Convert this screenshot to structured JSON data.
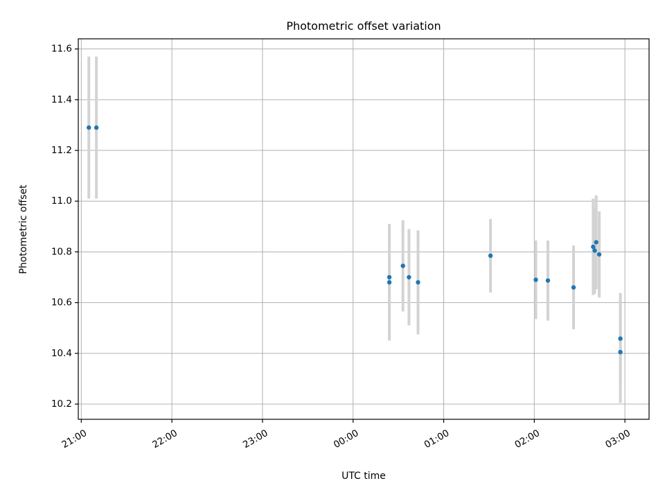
{
  "chart_data": {
    "type": "scatter",
    "title": "Photometric offset variation",
    "xlabel": "UTC time",
    "ylabel": "Photometric offset",
    "x_axis": {
      "kind": "time",
      "range": [
        "20:58",
        "03:16"
      ],
      "ticks": [
        "21:00",
        "22:00",
        "23:00",
        "00:00",
        "01:00",
        "02:00",
        "03:00"
      ]
    },
    "y_axis": {
      "range": [
        10.14,
        11.64
      ],
      "ticks": [
        "10.2",
        "10.4",
        "10.6",
        "10.8",
        "11.0",
        "11.2",
        "11.4",
        "11.6"
      ]
    },
    "grid": true,
    "colors": {
      "points": "#1f77b4",
      "errorbars": "#d3d3d3"
    },
    "points": [
      {
        "time": "21:05",
        "y": 11.29,
        "err": 0.28
      },
      {
        "time": "21:10",
        "y": 11.29,
        "err": 0.28
      },
      {
        "time": "00:24",
        "y": 10.68,
        "err": 0.23
      },
      {
        "time": "00:24",
        "y": 10.7,
        "err": 0.21
      },
      {
        "time": "00:33",
        "y": 10.745,
        "err": 0.18
      },
      {
        "time": "00:37",
        "y": 10.7,
        "err": 0.19
      },
      {
        "time": "00:43",
        "y": 10.68,
        "err": 0.205
      },
      {
        "time": "01:31",
        "y": 10.785,
        "err": 0.145
      },
      {
        "time": "02:01",
        "y": 10.69,
        "err": 0.155
      },
      {
        "time": "02:09",
        "y": 10.687,
        "err": 0.158
      },
      {
        "time": "02:26",
        "y": 10.66,
        "err": 0.165
      },
      {
        "time": "02:39",
        "y": 10.82,
        "err": 0.19
      },
      {
        "time": "02:40",
        "y": 10.805,
        "err": 0.17
      },
      {
        "time": "02:41",
        "y": 10.838,
        "err": 0.185
      },
      {
        "time": "02:43",
        "y": 10.79,
        "err": 0.17
      },
      {
        "time": "02:57",
        "y": 10.458,
        "err": 0.18
      },
      {
        "time": "02:57",
        "y": 10.405,
        "err": 0.2
      }
    ]
  }
}
